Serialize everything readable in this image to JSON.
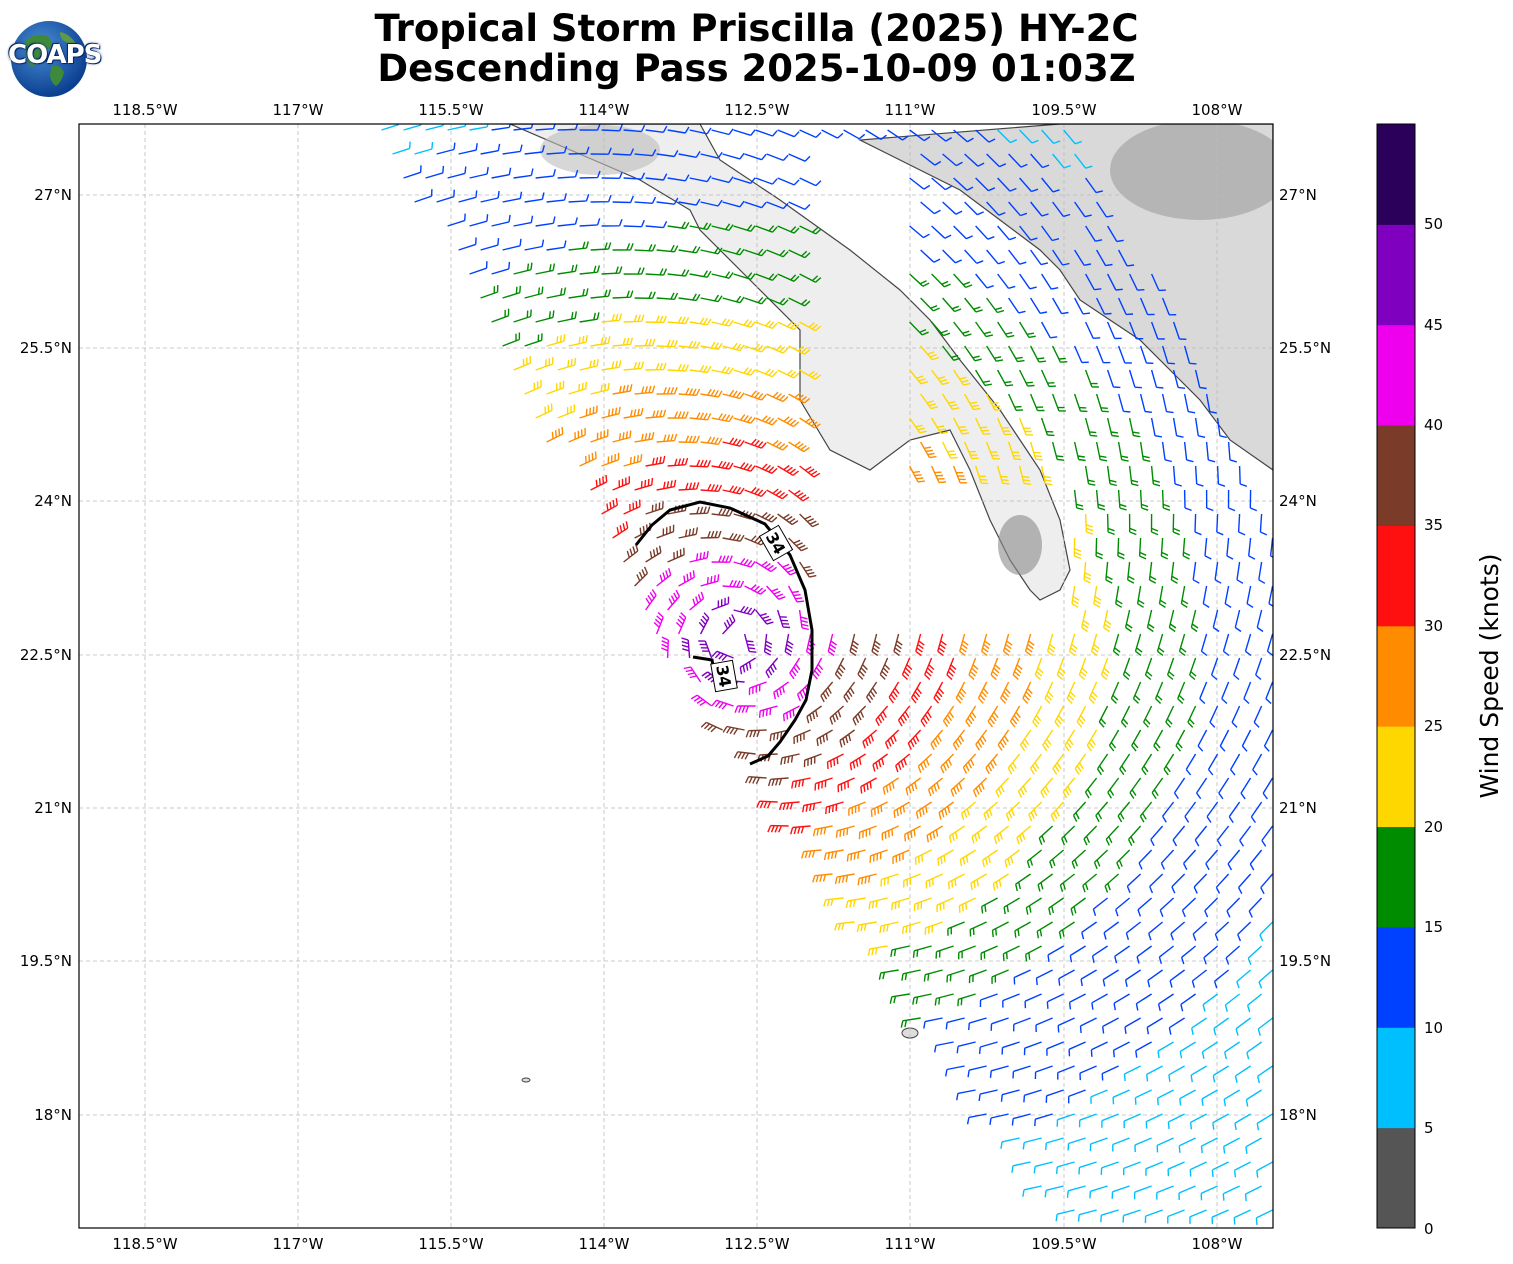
{
  "title": {
    "line1": "Tropical Storm Priscilla (2025) HY-2C",
    "line2": "Descending Pass 2025-10-09 01:03Z"
  },
  "logo": {
    "text": "COAPS",
    "icon": "globe-icon"
  },
  "map": {
    "lon_ticks": [
      "118.5°W",
      "117°W",
      "115.5°W",
      "114°W",
      "112.5°W",
      "111°W",
      "109.5°W",
      "108°W"
    ],
    "lat_ticks": [
      "27°N",
      "25.5°N",
      "24°N",
      "22.5°N",
      "21°N",
      "19.5°N",
      "18°N"
    ],
    "contour_label": "34",
    "contour_label_2": "34",
    "gridlines": true,
    "land_shading": "grayscale topography",
    "barb_colors": [
      "#555555",
      "#00bfff",
      "#0040ff",
      "#008c00",
      "#ffd700",
      "#ff8c00",
      "#ff1010",
      "#7a3b28",
      "#ee00ee",
      "#8000c0",
      "#2b005a"
    ]
  },
  "colorbar": {
    "label": "Wind Speed (knots)",
    "ticks": [
      "0",
      "5",
      "10",
      "15",
      "20",
      "25",
      "30",
      "35",
      "40",
      "45",
      "50"
    ],
    "colors": [
      "#555555",
      "#00bfff",
      "#0040ff",
      "#008c00",
      "#ffd700",
      "#ff8c00",
      "#ff1010",
      "#7a3b28",
      "#ee00ee",
      "#8000c0",
      "#2b005a"
    ]
  }
}
